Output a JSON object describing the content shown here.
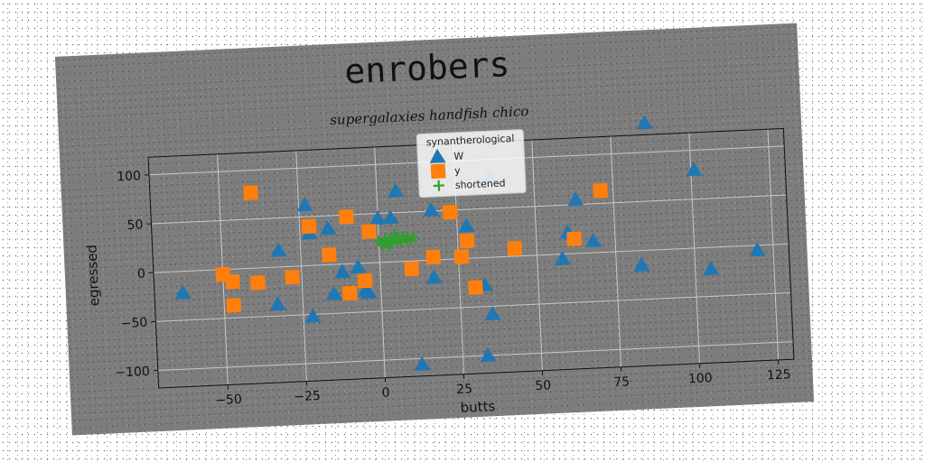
{
  "chart_data": {
    "type": "scatter",
    "title": "enrobers",
    "subtitle": "supergalaxies handfish chico",
    "xlabel": "butts",
    "ylabel": "egressed",
    "xlim": [
      -72,
      130
    ],
    "ylim": [
      -118,
      118
    ],
    "xticks": [
      -50,
      -25,
      0,
      25,
      50,
      75,
      100,
      125
    ],
    "yticks": [
      -100,
      -50,
      0,
      50,
      100
    ],
    "grid": true,
    "legend": {
      "title": "synantherological",
      "placement": "top-center"
    },
    "colors": {
      "W": "#1f77b4",
      "y": "#ff7f0e",
      "shortened": "#2ca02c"
    },
    "series": [
      {
        "name": "W",
        "marker": "triangle",
        "points": [
          [
            -63,
            -22
          ],
          [
            -32,
            17
          ],
          [
            -33,
            -38
          ],
          [
            -23,
            62
          ],
          [
            -22,
            -52
          ],
          [
            -22,
            33
          ],
          [
            -16,
            37
          ],
          [
            -15,
            -30
          ],
          [
            -12,
            -8
          ],
          [
            -7,
            -4
          ],
          [
            -5,
            -28
          ],
          [
            -4,
            -30
          ],
          [
            0,
            45
          ],
          [
            4,
            45
          ],
          [
            6,
            72
          ],
          [
            12,
            -106
          ],
          [
            17,
            51
          ],
          [
            17,
            -18
          ],
          [
            28,
            33
          ],
          [
            33,
            -100
          ],
          [
            35,
            -58
          ],
          [
            33,
            -28
          ],
          [
            36,
            82
          ],
          [
            58,
            -5
          ],
          [
            60,
            22
          ],
          [
            63,
            55
          ],
          [
            68,
            12
          ],
          [
            83,
            -15
          ],
          [
            86,
            130
          ],
          [
            101,
            80
          ],
          [
            105,
            -22
          ],
          [
            120,
            -5
          ]
        ]
      },
      {
        "name": "y",
        "marker": "square",
        "points": [
          [
            -50,
            -5
          ],
          [
            -47,
            -13
          ],
          [
            -47,
            -37
          ],
          [
            -40,
            77
          ],
          [
            -39,
            -15
          ],
          [
            -28,
            -11
          ],
          [
            -22,
            40
          ],
          [
            -16,
            10
          ],
          [
            -10,
            -30
          ],
          [
            -10,
            48
          ],
          [
            -5,
            -18
          ],
          [
            -3,
            32
          ],
          [
            10,
            -8
          ],
          [
            17,
            3
          ],
          [
            23,
            48
          ],
          [
            26,
            2
          ],
          [
            28,
            18
          ],
          [
            30,
            -30
          ],
          [
            43,
            8
          ],
          [
            62,
            15
          ],
          [
            71,
            63
          ]
        ]
      },
      {
        "name": "shortened",
        "marker": "plus",
        "points": [
          [
            0,
            22
          ],
          [
            1,
            18
          ],
          [
            2,
            24
          ],
          [
            3,
            21
          ],
          [
            4,
            19
          ],
          [
            5,
            25
          ],
          [
            6,
            22
          ],
          [
            7,
            20
          ],
          [
            8,
            26
          ],
          [
            9,
            23
          ],
          [
            10,
            21
          ],
          [
            11,
            24
          ],
          [
            3,
            16
          ],
          [
            5,
            28
          ]
        ]
      }
    ]
  }
}
